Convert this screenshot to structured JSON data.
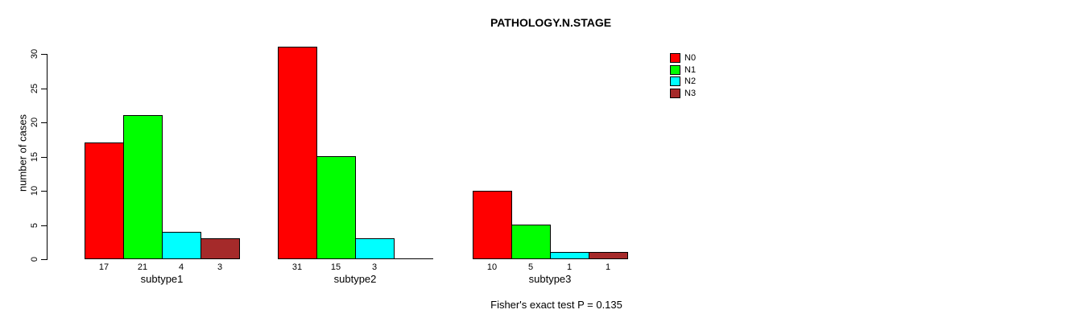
{
  "chart_data": {
    "type": "bar",
    "grouped": true,
    "title": "PATHOLOGY.N.STAGE",
    "xlabel": "",
    "ylabel": "number of cases",
    "annotation": "Fisher's exact test P = 0.135",
    "categories": [
      "subtype1",
      "subtype2",
      "subtype3"
    ],
    "series": [
      {
        "name": "N0",
        "color": "#ff0000",
        "values": [
          17,
          31,
          10
        ]
      },
      {
        "name": "N1",
        "color": "#00ff00",
        "values": [
          21,
          15,
          5
        ]
      },
      {
        "name": "N2",
        "color": "#00ffff",
        "values": [
          4,
          3,
          1
        ]
      },
      {
        "name": "N3",
        "color": "#a52a2a",
        "values": [
          3,
          0,
          1
        ]
      }
    ],
    "bar_value_labels": {
      "subtype1": [
        "17",
        "21",
        "4",
        "3"
      ],
      "subtype2": [
        "31",
        "15",
        "3"
      ],
      "subtype3": [
        "10",
        "5",
        "1",
        "1"
      ]
    },
    "ylim": [
      0,
      30
    ],
    "yticks": [
      0,
      5,
      10,
      15,
      20,
      25,
      30
    ],
    "grid": false,
    "legend_position": "top-right",
    "legend_labels": [
      "N0",
      "N1",
      "N2",
      "N3"
    ]
  },
  "colors": {
    "background": "#ffffff",
    "axis": "#000000",
    "text": "#000000"
  }
}
